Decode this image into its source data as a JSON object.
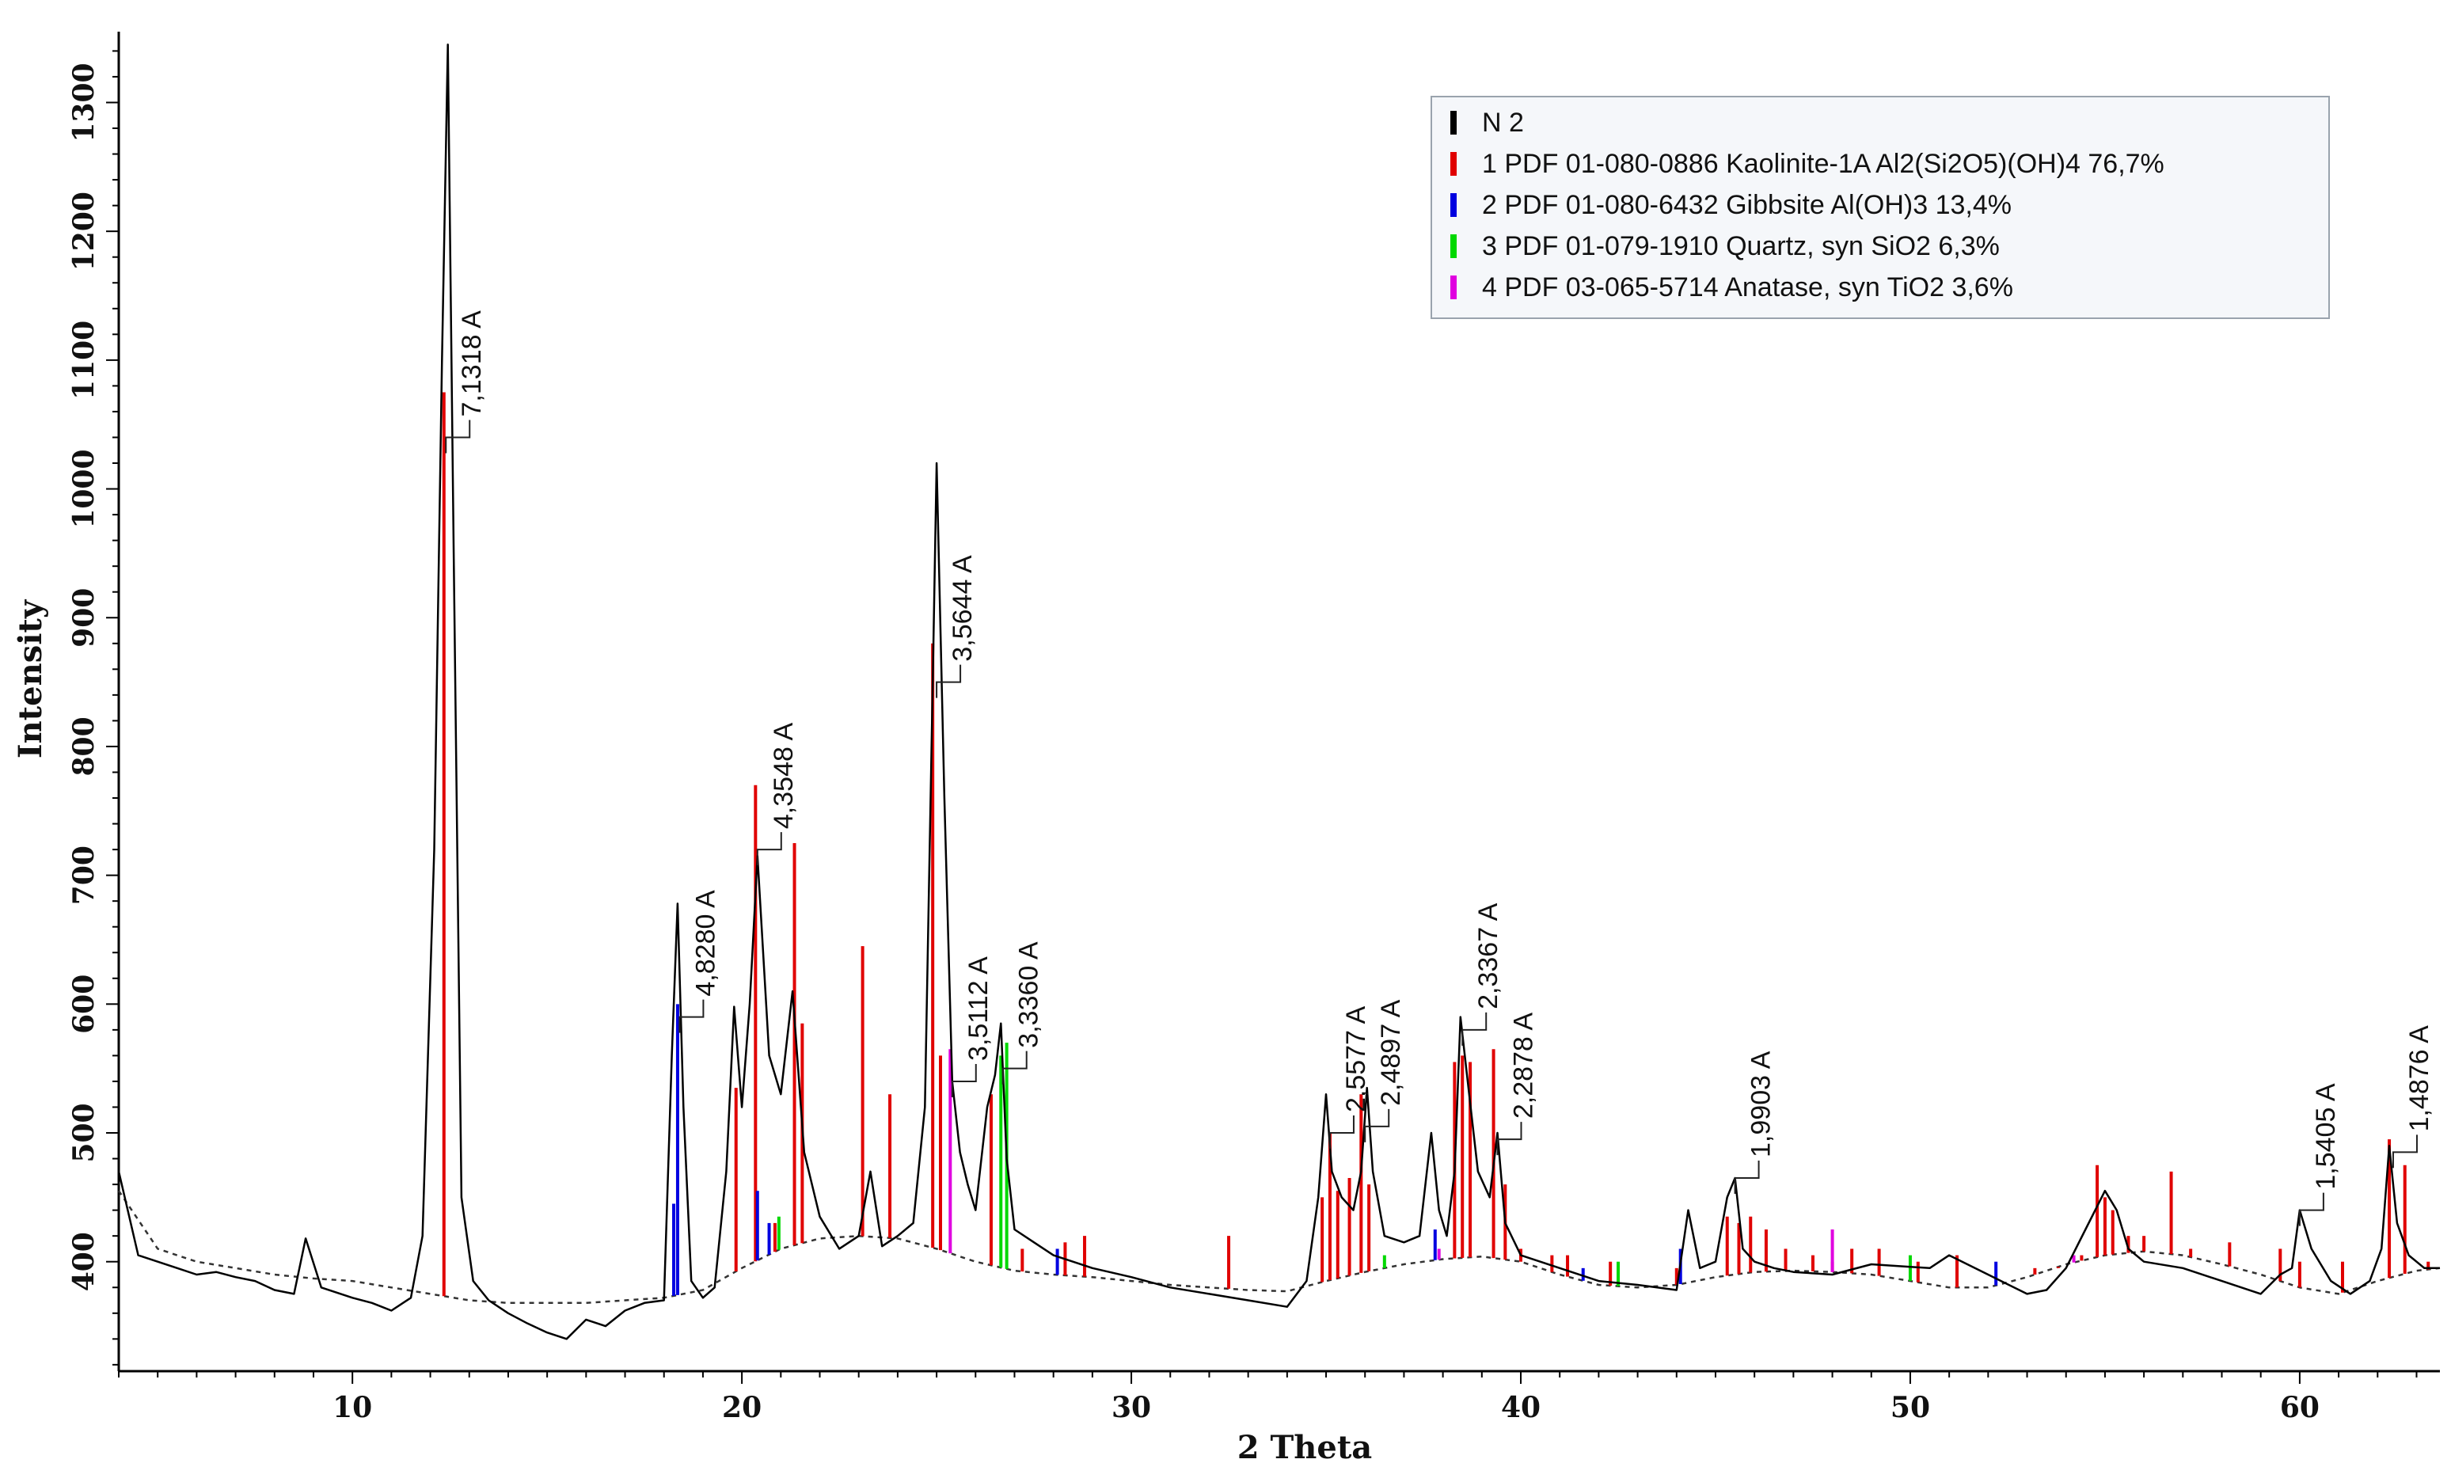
{
  "chart_data": {
    "type": "line",
    "title": "",
    "xlabel": "2 Theta",
    "ylabel": "Intensity",
    "xlim": [
      4,
      63.6
    ],
    "ylim": [
      315,
      1355
    ],
    "x_ticks": [
      10,
      20,
      30,
      40,
      50,
      60
    ],
    "y_ticks": [
      400,
      500,
      600,
      700,
      800,
      900,
      1000,
      1100,
      1200,
      1300
    ],
    "legend_position": "top-right",
    "legend": [
      {
        "label": "N 2",
        "color": "#000000"
      },
      {
        "label": "1 PDF 01-080-0886 Kaolinite-1A Al2(Si2O5)(OH)4 76,7%",
        "color": "#e00000"
      },
      {
        "label": "2 PDF 01-080-6432 Gibbsite Al(OH)3 13,4%",
        "color": "#0000e0"
      },
      {
        "label": "3 PDF 01-079-1910 Quartz, syn SiO2 6,3%",
        "color": "#00d800"
      },
      {
        "label": "4 PDF 03-065-5714 Anatase, syn TiO2 3,6%",
        "color": "#e000e0"
      }
    ],
    "peak_labels": [
      {
        "x": 12.4,
        "y": 1040,
        "text": "7,1318 A"
      },
      {
        "x": 18.4,
        "y": 590,
        "text": "4,8280 A"
      },
      {
        "x": 20.4,
        "y": 720,
        "text": "4,3548 A"
      },
      {
        "x": 25.0,
        "y": 850,
        "text": "3,5644 A"
      },
      {
        "x": 25.4,
        "y": 540,
        "text": "3,5112 A"
      },
      {
        "x": 26.7,
        "y": 550,
        "text": "3,3360 A"
      },
      {
        "x": 35.1,
        "y": 500,
        "text": "2,5577 A"
      },
      {
        "x": 36.0,
        "y": 505,
        "text": "2,4897 A"
      },
      {
        "x": 38.5,
        "y": 580,
        "text": "2,3367 A"
      },
      {
        "x": 39.4,
        "y": 495,
        "text": "2,2878 A"
      },
      {
        "x": 45.5,
        "y": 465,
        "text": "1,9903 A"
      },
      {
        "x": 60.0,
        "y": 440,
        "text": "1,5405 A"
      },
      {
        "x": 62.4,
        "y": 485,
        "text": "1,4876 A"
      }
    ],
    "series": [
      {
        "name": "N 2",
        "color": "#000000",
        "style": "solid",
        "x": [
          4.0,
          4.5,
          5.0,
          5.5,
          6.0,
          6.5,
          7.0,
          7.5,
          8.0,
          8.5,
          8.8,
          9.2,
          10.0,
          10.5,
          11.0,
          11.5,
          11.8,
          12.1,
          12.3,
          12.45,
          12.6,
          12.8,
          13.1,
          13.5,
          14.0,
          14.5,
          15.0,
          15.5,
          16.0,
          16.5,
          17.0,
          17.5,
          18.0,
          18.2,
          18.35,
          18.5,
          18.7,
          19.0,
          19.3,
          19.6,
          19.8,
          20.0,
          20.2,
          20.4,
          20.7,
          21.0,
          21.3,
          21.6,
          22.0,
          22.5,
          23.0,
          23.3,
          23.6,
          24.0,
          24.4,
          24.7,
          24.9,
          25.0,
          25.2,
          25.4,
          25.6,
          25.8,
          26.0,
          26.3,
          26.5,
          26.65,
          26.8,
          27.0,
          27.5,
          28.0,
          28.5,
          29.0,
          30.0,
          31.0,
          32.0,
          33.0,
          34.0,
          34.5,
          34.8,
          35.0,
          35.15,
          35.4,
          35.7,
          35.9,
          36.05,
          36.2,
          36.5,
          37.0,
          37.4,
          37.7,
          37.9,
          38.1,
          38.3,
          38.45,
          38.6,
          38.9,
          39.2,
          39.4,
          39.6,
          40.0,
          41.0,
          42.0,
          43.0,
          44.0,
          44.3,
          44.6,
          45.0,
          45.3,
          45.5,
          45.7,
          46.0,
          46.5,
          47.0,
          48.0,
          49.0,
          50.0,
          50.5,
          51.0,
          52.0,
          53.0,
          53.5,
          54.0,
          54.5,
          55.0,
          55.3,
          55.6,
          56.0,
          57.0,
          58.0,
          59.0,
          59.5,
          59.8,
          60.0,
          60.3,
          60.8,
          61.3,
          61.8,
          62.1,
          62.3,
          62.5,
          62.8,
          63.2,
          63.6
        ],
        "y": [
          470,
          405,
          400,
          395,
          390,
          392,
          388,
          385,
          378,
          375,
          418,
          380,
          372,
          368,
          362,
          372,
          420,
          720,
          1100,
          1345,
          950,
          450,
          385,
          370,
          360,
          352,
          345,
          340,
          355,
          350,
          362,
          368,
          370,
          560,
          678,
          520,
          385,
          372,
          380,
          470,
          598,
          520,
          600,
          715,
          560,
          530,
          610,
          485,
          435,
          410,
          420,
          470,
          412,
          420,
          430,
          520,
          850,
          1020,
          760,
          540,
          485,
          460,
          440,
          520,
          545,
          585,
          480,
          425,
          415,
          405,
          400,
          395,
          388,
          380,
          375,
          370,
          365,
          385,
          450,
          530,
          470,
          450,
          440,
          470,
          535,
          470,
          420,
          415,
          420,
          500,
          440,
          420,
          470,
          590,
          550,
          470,
          450,
          500,
          430,
          405,
          395,
          385,
          382,
          378,
          440,
          395,
          400,
          450,
          465,
          410,
          400,
          395,
          392,
          390,
          398,
          396,
          395,
          405,
          390,
          375,
          378,
          395,
          425,
          455,
          440,
          410,
          400,
          395,
          385,
          375,
          390,
          395,
          440,
          410,
          385,
          375,
          385,
          410,
          490,
          430,
          405,
          395,
          395
        ]
      },
      {
        "name": "background",
        "color": "#333333",
        "style": "dashed",
        "x": [
          4.0,
          5.0,
          6.0,
          7.0,
          8.0,
          9.0,
          10.0,
          11.0,
          12.0,
          13.0,
          14.0,
          15.0,
          16.0,
          17.0,
          18.0,
          19.0,
          20.0,
          21.0,
          22.0,
          23.0,
          24.0,
          25.0,
          26.0,
          27.0,
          28.0,
          29.0,
          30.0,
          31.0,
          32.0,
          33.0,
          34.0,
          35.0,
          36.0,
          37.0,
          38.0,
          39.0,
          40.0,
          41.0,
          42.0,
          43.0,
          44.0,
          45.0,
          46.0,
          47.0,
          48.0,
          49.0,
          50.0,
          51.0,
          52.0,
          53.0,
          54.0,
          55.0,
          56.0,
          57.0,
          58.0,
          59.0,
          60.0,
          61.0,
          62.0,
          63.0,
          63.6
        ],
        "y": [
          455,
          410,
          400,
          395,
          390,
          387,
          385,
          380,
          375,
          370,
          368,
          368,
          368,
          370,
          372,
          378,
          395,
          410,
          418,
          420,
          418,
          410,
          400,
          393,
          390,
          388,
          385,
          382,
          380,
          378,
          377,
          385,
          392,
          398,
          402,
          404,
          400,
          390,
          382,
          380,
          382,
          388,
          392,
          393,
          392,
          390,
          385,
          380,
          380,
          388,
          398,
          405,
          408,
          405,
          398,
          390,
          380,
          375,
          385,
          393,
          395
        ]
      }
    ],
    "reference_lines": [
      {
        "phase": "Kaolinite-1A",
        "color": "#e00000",
        "x": [
          12.35,
          19.85,
          20.35,
          20.85,
          21.35,
          21.55,
          23.1,
          23.8,
          24.9,
          25.1,
          26.4,
          27.2,
          28.3,
          28.8,
          32.5,
          34.9,
          35.1,
          35.3,
          35.6,
          35.9,
          36.1,
          38.3,
          38.5,
          38.7,
          39.3,
          39.6,
          40.0,
          40.8,
          41.2,
          42.3,
          44.0,
          45.3,
          45.6,
          45.9,
          46.3,
          46.8,
          47.5,
          48.0,
          48.5,
          49.2,
          50.2,
          51.2,
          53.2,
          53.8,
          54.4,
          54.8,
          55.0,
          55.2,
          55.6,
          56.0,
          56.7,
          57.2,
          58.2,
          59.5,
          60.0,
          61.1,
          62.3,
          62.7,
          63.3
        ],
        "y": [
          1075,
          535,
          770,
          430,
          725,
          585,
          645,
          530,
          880,
          560,
          530,
          410,
          415,
          420,
          420,
          450,
          500,
          455,
          465,
          530,
          460,
          555,
          560,
          555,
          565,
          460,
          410,
          405,
          405,
          400,
          395,
          435,
          430,
          435,
          425,
          410,
          405,
          400,
          410,
          410,
          400,
          405,
          395,
          395,
          405,
          475,
          450,
          440,
          420,
          420,
          470,
          410,
          415,
          410,
          400,
          400,
          495,
          475,
          400
        ]
      },
      {
        "phase": "Gibbsite",
        "color": "#0000e0",
        "x": [
          18.25,
          18.35,
          20.4,
          20.7,
          28.1,
          37.8,
          41.6,
          44.1,
          52.2
        ],
        "y": [
          445,
          600,
          455,
          430,
          410,
          425,
          395,
          410,
          400
        ]
      },
      {
        "phase": "Quartz",
        "color": "#00d800",
        "x": [
          20.95,
          26.65,
          26.8,
          36.5,
          42.5,
          50.0
        ],
        "y": [
          435,
          560,
          570,
          405,
          400,
          405
        ]
      },
      {
        "phase": "Anatase",
        "color": "#e000e0",
        "x": [
          25.35,
          37.9,
          48.0,
          54.2
        ],
        "y": [
          565,
          410,
          425,
          405
        ]
      }
    ]
  }
}
